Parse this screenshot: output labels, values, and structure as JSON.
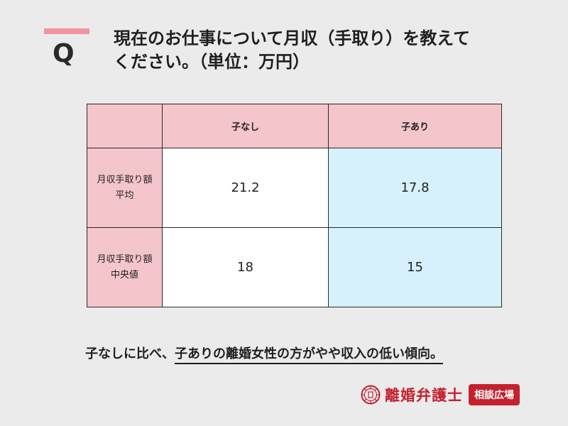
{
  "question": {
    "marker": "Q",
    "line1": "現在のお仕事について月収（手取り）を教えて",
    "line2": "ください。（単位：万円）"
  },
  "table": {
    "headers": [
      "",
      "子なし",
      "子あり"
    ],
    "rows": [
      {
        "label_line1": "月収手取り額",
        "label_line2": "平均",
        "values": [
          "21.2",
          "17.8"
        ]
      },
      {
        "label_line1": "月収手取り額",
        "label_line2": "中央値",
        "values": [
          "18",
          "15"
        ]
      }
    ]
  },
  "conclusion": {
    "prefix": "子なしに比べ、",
    "highlight": "子ありの離婚女性の方がやや収入の低い傾向。"
  },
  "logo": {
    "name": "離婚弁護士",
    "badge": "相談広場",
    "brand_color": "#c4212e"
  },
  "colors": {
    "accent": "#f2939e",
    "header_fill": "#f4c5ca",
    "blue_fill": "#d6f1fb",
    "background": "#ebebeb"
  }
}
